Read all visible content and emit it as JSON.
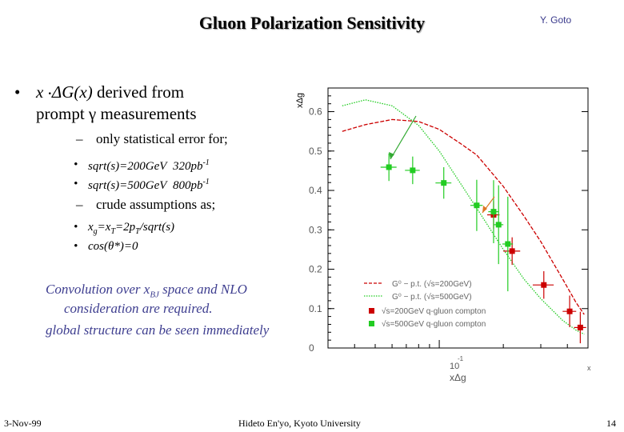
{
  "slide": {
    "title": "Gluon Polarization Sensitivity",
    "author": "Y. Goto",
    "bullet1": {
      "marker": "•",
      "line1_pre": "x ",
      "line1_dot": "·",
      "line1_func": "ΔG(x)",
      "line1_post": " derived from",
      "line2": "prompt γ measurements"
    },
    "sub1": {
      "marker": "–",
      "text": "only statistical error for;"
    },
    "sub1_items": [
      {
        "marker": "•",
        "energy": "sqrt(s)=200GeV",
        "lumi": "320pb",
        "exp": "-1"
      },
      {
        "marker": "•",
        "energy": "sqrt(s)=500GeV",
        "lumi": "800pb",
        "exp": "-1"
      }
    ],
    "sub2": {
      "marker": "–",
      "text": "crude assumptions as;"
    },
    "sub2_items": [
      {
        "marker": "•",
        "a": "x",
        "a_sub": "g",
        "b": "=x",
        "b_sub": "T",
        "c": "=2p",
        "c_sub": "T",
        "d": "/sqrt(s)"
      },
      {
        "marker": "•",
        "text": "cos(θ*)=0"
      }
    ],
    "note": {
      "line1_pre": "Convolution over x",
      "line1_sub": "BJ",
      "line1_post": " space and NLO",
      "line2": "consideration are required.",
      "line3": "global structure can be seen  immediately"
    },
    "footer": {
      "date": "3-Nov-99",
      "affiliation": "Hideto En'yo, Kyoto University",
      "page": "14"
    }
  },
  "chart_data": {
    "type": "scatter",
    "ylabel": "xΔg",
    "xlabel": "xΔg",
    "x_tick_labels": [
      "10",
      "-1",
      "x"
    ],
    "y_ticks": [
      "0",
      "0.1",
      "0.2",
      "0.3",
      "0.4",
      "0.5",
      "0.6"
    ],
    "ylim": [
      0,
      0.66
    ],
    "xscale": "log",
    "legend_position": "bottom-right",
    "colors": {
      "red": "#cc0000",
      "green": "#22cc22",
      "blue": "#3333ff",
      "frame": "#000000"
    },
    "curves": [
      {
        "legend": "G⁰ − p.t. (√s=200GeV)",
        "color": "#cc0000",
        "style": "dashed",
        "x": [
          0.035,
          0.045,
          0.06,
          0.08,
          0.1,
          0.125,
          0.15,
          0.2,
          0.25,
          0.3,
          0.38,
          0.44,
          0.48
        ],
        "y": [
          0.55,
          0.567,
          0.58,
          0.575,
          0.555,
          0.52,
          0.49,
          0.41,
          0.335,
          0.27,
          0.175,
          0.115,
          0.085
        ]
      },
      {
        "legend": "G⁰ − p.t. (√s=500GeV)",
        "color": "#22cc22",
        "style": "dotted",
        "x": [
          0.035,
          0.045,
          0.06,
          0.08,
          0.1,
          0.125,
          0.15,
          0.2,
          0.25,
          0.3,
          0.38,
          0.44,
          0.48
        ],
        "y": [
          0.615,
          0.63,
          0.615,
          0.565,
          0.5,
          0.42,
          0.355,
          0.25,
          0.175,
          0.125,
          0.07,
          0.045,
          0.035
        ]
      }
    ],
    "series": [
      {
        "legend": "√s=200GeV q-gluon compton",
        "color": "#cc0000",
        "x": [
          0.18,
          0.22,
          0.31,
          0.41,
          0.46
        ],
        "y": [
          0.338,
          0.246,
          0.16,
          0.093,
          0.052
        ],
        "xerr": [
          0.012,
          0.02,
          0.035,
          0.03,
          0.03
        ],
        "yerr": [
          0.035,
          0.035,
          0.035,
          0.04,
          0.04
        ]
      },
      {
        "legend": "√s=500GeV q-gluon compton",
        "color": "#22cc22",
        "x": [
          0.058,
          0.075,
          0.105,
          0.15,
          0.18,
          0.19,
          0.21
        ],
        "y": [
          0.459,
          0.451,
          0.419,
          0.362,
          0.346,
          0.313,
          0.264
        ],
        "xerr": [
          0.005,
          0.006,
          0.009,
          0.01,
          0.01,
          0.01,
          0.012
        ],
        "yerr": [
          0.035,
          0.035,
          0.04,
          0.065,
          0.08,
          0.1,
          0.12
        ]
      }
    ],
    "annotations": [
      "arrow-to-first-500GeV-point",
      "arrow-to-first-200GeV-point"
    ]
  }
}
